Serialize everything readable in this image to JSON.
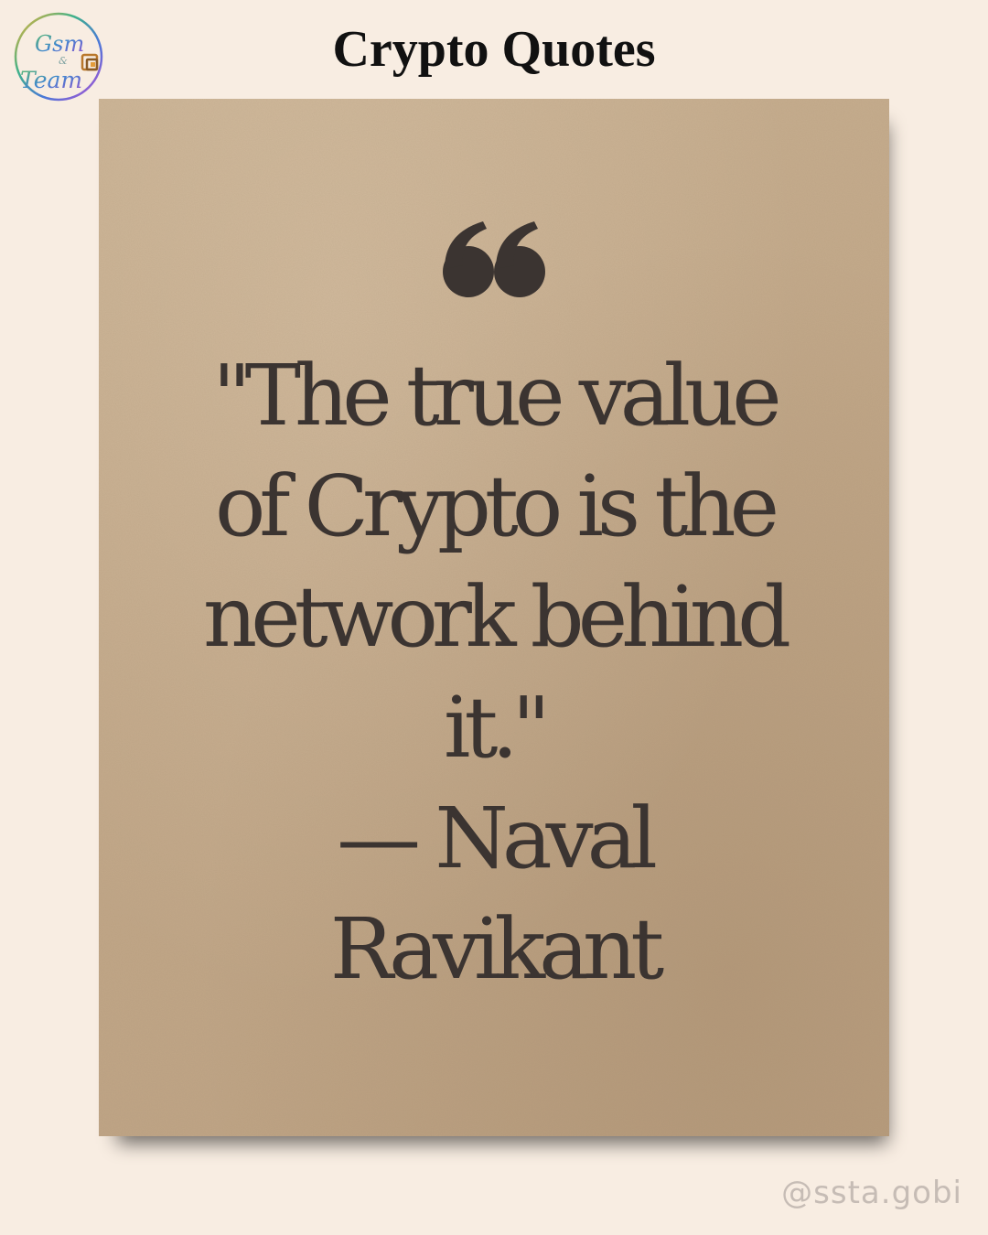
{
  "logo": {
    "line1": "Gsm",
    "amp": "&",
    "line2": "Team",
    "icon": "layers-icon"
  },
  "page_title": "Crypto Quotes",
  "quote": {
    "open_mark_icon": "quote-open-icon",
    "lines": [
      "\"The true value",
      "of Crypto is the",
      "network behind",
      "it.\"",
      "— Naval",
      "Ravikant"
    ]
  },
  "handle": "@ssta.gobi",
  "colors": {
    "background": "#f8ede2",
    "card": "#c4aa8a",
    "text": "#3b3431",
    "title": "#111111",
    "handle": "#c6bcb5"
  }
}
